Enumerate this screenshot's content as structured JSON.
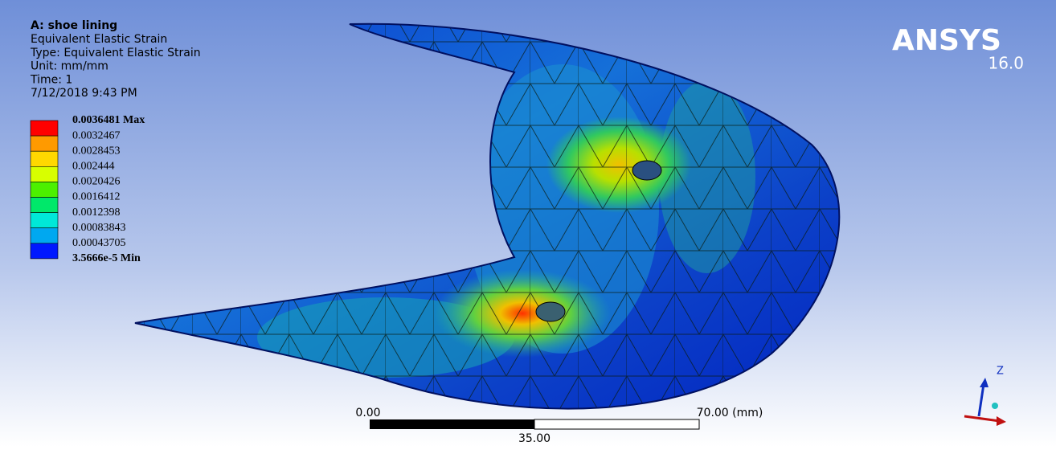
{
  "header": {
    "title": "A: shoe lining",
    "lines": [
      "Equivalent Elastic Strain",
      "Type: Equivalent Elastic Strain",
      "Unit: mm/mm",
      "Time: 1",
      "7/12/2018 9:43 PM"
    ]
  },
  "legend": {
    "labels": [
      "0.0036481 Max",
      "0.0032467",
      "0.0028453",
      "0.002444",
      "0.0020426",
      "0.0016412",
      "0.0012398",
      "0.00083843",
      "0.00043705",
      "3.5666e-5 Min"
    ],
    "colors": [
      "#ff0000",
      "#ff9a00",
      "#ffd800",
      "#d8ff00",
      "#4cf000",
      "#00e86a",
      "#00e8d8",
      "#00a8f0",
      "#0018ff"
    ]
  },
  "logo": {
    "name": "ANSYS",
    "version": "16.0"
  },
  "scale_bar": {
    "left": "0.00",
    "right": "70.00 (mm)",
    "middle": "35.00"
  },
  "triad": {
    "z": "Z"
  }
}
